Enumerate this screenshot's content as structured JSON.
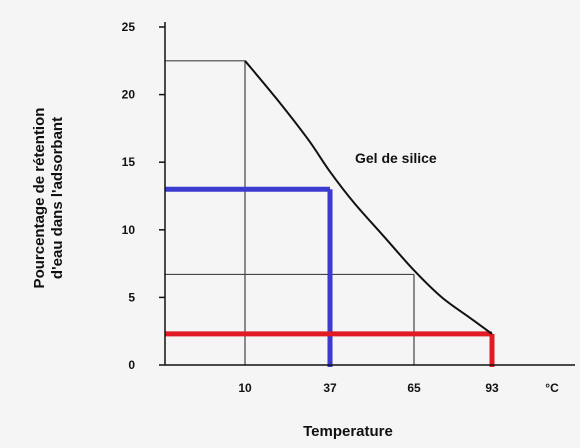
{
  "chart_data": {
    "type": "line",
    "title": "",
    "xlabel": "Temperature",
    "ylabel": "Pourcentage de rétention d'eau dans l'adsorbant",
    "ylabel_lines": [
      "Pourcentage de rétention",
      "d'eau dans l'adsorbant"
    ],
    "x_unit_label": "°C",
    "x_ticks": [
      10,
      37,
      65,
      93
    ],
    "y_ticks": [
      0,
      5,
      10,
      15,
      20,
      25
    ],
    "ylim": [
      0,
      25
    ],
    "grid": false,
    "series": [
      {
        "name": "Gel de silice",
        "x": [
          10,
          20,
          30,
          37,
          45,
          55,
          65,
          75,
          85,
          93
        ],
        "y": [
          22.5,
          19.7,
          16.7,
          14.3,
          12.0,
          9.5,
          7.0,
          5.0,
          3.5,
          2.3
        ]
      }
    ],
    "reference_lines": [
      {
        "orientation": "horizontal",
        "y": 22.5,
        "x_from": "axis",
        "x_to": 10,
        "color": "#444444"
      },
      {
        "orientation": "vertical",
        "x": 10,
        "y_from": 0,
        "y_to": 22.5,
        "color": "#444444"
      },
      {
        "orientation": "horizontal",
        "y": 6.7,
        "x_from": "axis",
        "x_to": 65,
        "color": "#444444"
      },
      {
        "orientation": "vertical",
        "x": 65,
        "y_from": 0,
        "y_to": 6.7,
        "color": "#444444"
      },
      {
        "orientation": "horizontal",
        "y": 13,
        "x_from": "axis",
        "x_to": 37,
        "color": "#3b3bd0"
      },
      {
        "orientation": "vertical",
        "x": 37,
        "y_from": 0,
        "y_to": 13,
        "color": "#3b3bd0"
      },
      {
        "orientation": "horizontal",
        "y": 2.3,
        "x_from": "axis",
        "x_to": 93,
        "color": "#e01b24"
      },
      {
        "orientation": "vertical",
        "x": 93,
        "y_from": 0,
        "y_to": 2.3,
        "color": "#e01b24"
      }
    ]
  }
}
